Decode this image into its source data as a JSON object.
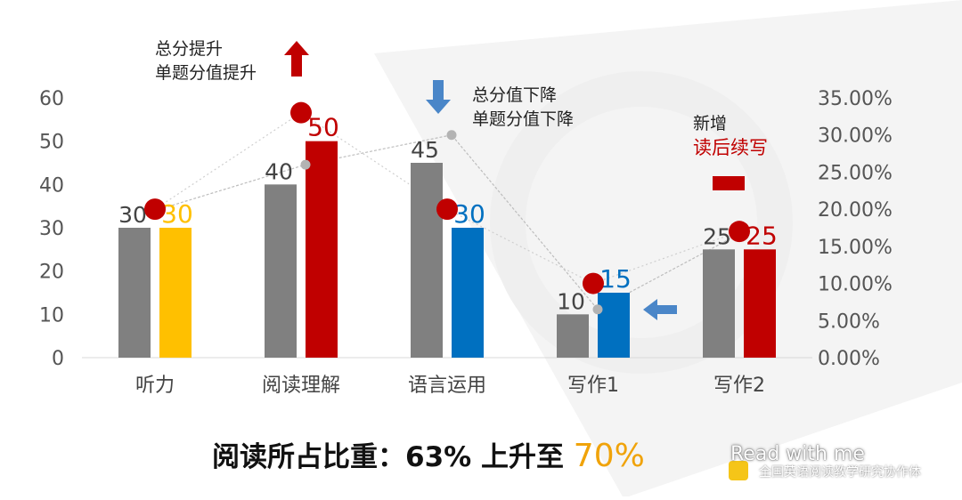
{
  "chart_data": {
    "type": "bar",
    "categories": [
      "听力",
      "阅读理解",
      "语言运用",
      "写作1",
      "写作2"
    ],
    "series": [
      {
        "values": [
          30,
          40,
          45,
          10,
          25
        ],
        "color": "#808080",
        "label_color": "#444444"
      },
      {
        "values": [
          30,
          50,
          30,
          15,
          25
        ],
        "colors": [
          "#ffc000",
          "#c00000",
          "#0070c0",
          "#0070c0",
          "#c00000"
        ]
      }
    ],
    "line_series": [
      {
        "values": [
          20.0,
          26.0,
          30.0,
          6.5,
          17.0
        ],
        "axis": "right",
        "color": "#bbbbbb",
        "marker": "small-gray-dot"
      },
      {
        "values": [
          20.0,
          33.0,
          20.0,
          10.0,
          17.0
        ],
        "axis": "right",
        "color": "#c00000",
        "marker": "large-red-dot"
      }
    ],
    "ylim": [
      0,
      60
    ],
    "yticks": [
      "0",
      "10",
      "20",
      "30",
      "40",
      "50",
      "60"
    ],
    "y2lim": [
      0,
      35
    ],
    "y2ticks": [
      "0.00%",
      "5.00%",
      "10.00%",
      "15.00%",
      "20.00%",
      "25.00%",
      "30.00%",
      "35.00%"
    ],
    "grid": false
  },
  "annotations": {
    "increase_line1": "总分提升",
    "increase_line2": "单题分值提升",
    "decrease_line1": "总分值下降",
    "decrease_line2": "单题分值下降",
    "new_line1": "新增",
    "new_line2": "读后续写"
  },
  "icons": {
    "up": "up-arrow-icon",
    "down": "down-arrow-icon",
    "left": "left-arrow-icon",
    "new": "minus-bar-icon"
  },
  "caption": {
    "text": "阅读所占比重：63%  上升至 ",
    "highlight": "70%"
  },
  "watermark": {
    "title": "Read with me",
    "subtitle": "全国英语阅读教学研究协作体"
  },
  "colors": {
    "red": "#c00000",
    "blue": "#4a86c8",
    "orange": "#f0a30a",
    "gray": "#808080"
  }
}
